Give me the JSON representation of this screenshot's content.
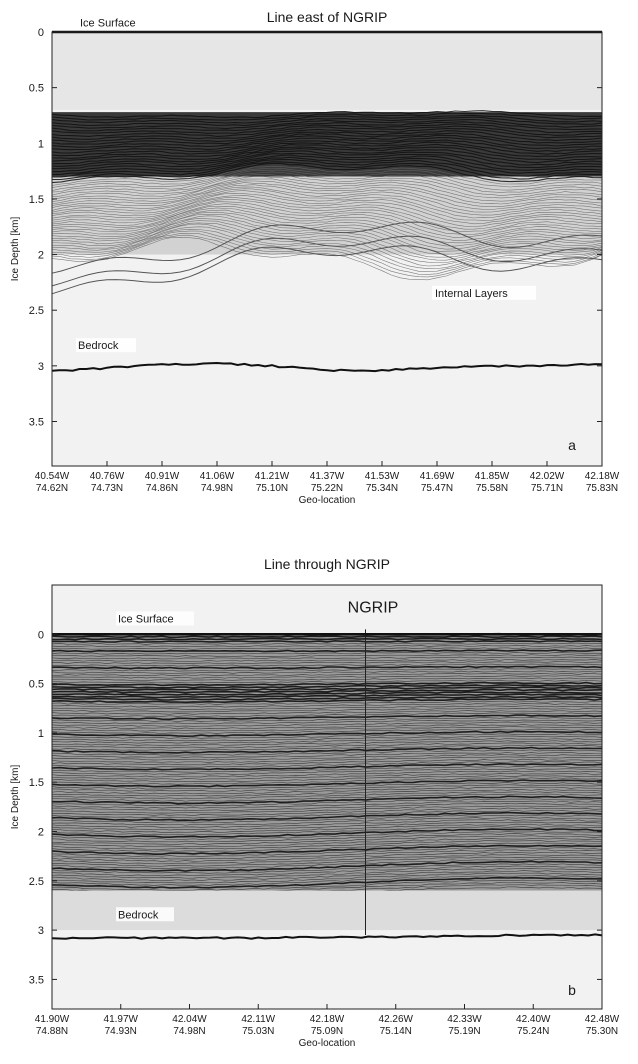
{
  "chart_data": [
    {
      "type": "radargram",
      "title": "Line east of NGRIP",
      "xlabel": "Geo-location",
      "ylabel": "Ice Depth [km]",
      "ylim": [
        0,
        3.9
      ],
      "y_ticks": [
        0,
        0.5,
        1,
        1.5,
        2,
        2.5,
        3,
        3.5
      ],
      "y_tick_labels": [
        "0",
        "0.5",
        "1",
        "1.5",
        "2",
        "2.5",
        "3",
        "3.5"
      ],
      "x_ticks": [
        {
          "lon": "40.54W",
          "lat": "74.62N"
        },
        {
          "lon": "40.76W",
          "lat": "74.73N"
        },
        {
          "lon": "40.91W",
          "lat": "74.86N"
        },
        {
          "lon": "41.06W",
          "lat": "74.98N"
        },
        {
          "lon": "41.21W",
          "lat": "75.10N"
        },
        {
          "lon": "41.37W",
          "lat": "75.22N"
        },
        {
          "lon": "41.53W",
          "lat": "75.34N"
        },
        {
          "lon": "41.69W",
          "lat": "75.47N"
        },
        {
          "lon": "41.85W",
          "lat": "75.58N"
        },
        {
          "lon": "42.02W",
          "lat": "75.71N"
        },
        {
          "lon": "42.18W",
          "lat": "75.83N"
        }
      ],
      "surface_depth": 0,
      "bedrock_depth": [
        3.05,
        3.02,
        2.99,
        2.98,
        3.0,
        3.04,
        3.04,
        3.02,
        3.0,
        3.0,
        2.98
      ],
      "annotations": [
        "Ice Surface",
        "Internal Layers",
        "Bedrock"
      ],
      "panel_label": "a"
    },
    {
      "type": "radargram",
      "title": "Line through NGRIP",
      "xlabel": "Geo-location",
      "ylabel": "Ice Depth [km]",
      "ylim": [
        -0.5,
        3.8
      ],
      "y_ticks": [
        0,
        0.5,
        1,
        1.5,
        2,
        2.5,
        3,
        3.5
      ],
      "y_tick_labels": [
        "0",
        "0.5",
        "1",
        "1.5",
        "2",
        "2.5",
        "3",
        "3.5"
      ],
      "x_ticks": [
        {
          "lon": "41.90W",
          "lat": "74.88N"
        },
        {
          "lon": "41.97W",
          "lat": "74.93N"
        },
        {
          "lon": "42.04W",
          "lat": "74.98N"
        },
        {
          "lon": "42.11W",
          "lat": "75.03N"
        },
        {
          "lon": "42.18W",
          "lat": "75.09N"
        },
        {
          "lon": "42.26W",
          "lat": "75.14N"
        },
        {
          "lon": "42.33W",
          "lat": "75.19N"
        },
        {
          "lon": "42.40W",
          "lat": "75.24N"
        },
        {
          "lon": "42.48W",
          "lat": "75.30N"
        }
      ],
      "surface_depth": 0,
      "bedrock_depth": [
        3.08,
        3.08,
        3.08,
        3.08,
        3.07,
        3.07,
        3.06,
        3.05,
        3.05
      ],
      "annotations": [
        "Ice Surface",
        "NGRIP",
        "Bedrock"
      ],
      "panel_label": "b"
    }
  ]
}
